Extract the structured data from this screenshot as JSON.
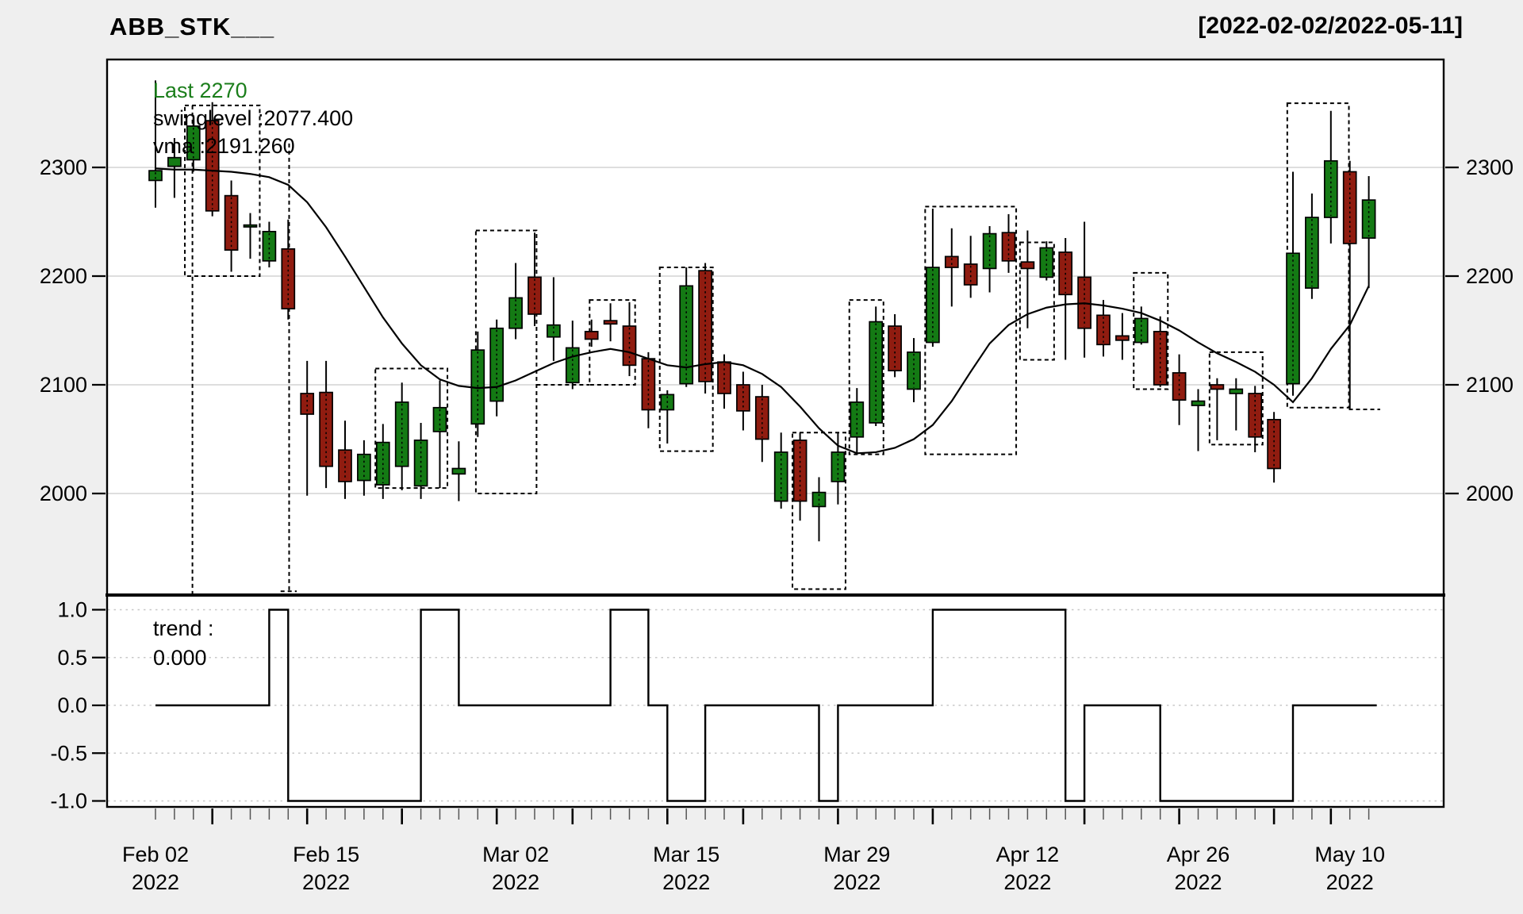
{
  "header": {
    "title": "ABB_STK___",
    "date_range": "[2022-02-02/2022-05-11]"
  },
  "main_panel": {
    "legend": {
      "last": "Last 2270",
      "swinglevel": "swinglevel :2077.400",
      "vma": "vma :2191.260"
    },
    "y_axis_ticks": [
      "2300",
      "2200",
      "2100",
      "2000"
    ]
  },
  "trend_panel": {
    "legend": {
      "line1": "trend :",
      "line2": "0.000"
    },
    "y_axis_ticks": [
      "1.0",
      "0.5",
      "0.0",
      "-0.5",
      "-1.0"
    ]
  },
  "colors": {
    "up": "#147a14",
    "down": "#901c10",
    "line": "#000000",
    "grid": "#d4d4d4",
    "trend_grid": "#c8c8c8",
    "panel_bg": "#ffffff",
    "page_bg": "#efefef",
    "text": "#000000",
    "last_green": "#1b7e1b"
  },
  "chart_data": {
    "type": "candlestick",
    "title": "ABB_STK___",
    "subtitle_range": "[2022-02-02/2022-05-11]",
    "ylabel": "",
    "xlabel": "",
    "ylim": [
      1905,
      2400
    ],
    "y_ticks": [
      2300,
      2200,
      2100,
      2000
    ],
    "trend_ylim": [
      -1.15,
      1.15
    ],
    "trend_ticks": [
      1.0,
      0.5,
      0.0,
      -0.5,
      -1.0
    ],
    "legend_values": {
      "last": 2270,
      "swinglevel": 2077.4,
      "vma": 2191.26,
      "trend": 0.0
    },
    "x_labels": [
      {
        "bar": 0,
        "line1": "Feb 02",
        "line2": "2022"
      },
      {
        "bar": 9,
        "line1": "Feb 15",
        "line2": "2022"
      },
      {
        "bar": 19,
        "line1": "Mar 02",
        "line2": "2022"
      },
      {
        "bar": 28,
        "line1": "Mar 15",
        "line2": "2022"
      },
      {
        "bar": 37,
        "line1": "Mar 29",
        "line2": "2022"
      },
      {
        "bar": 46,
        "line1": "Apr 12",
        "line2": "2022"
      },
      {
        "bar": 55,
        "line1": "Apr 26",
        "line2": "2022"
      },
      {
        "bar": 63,
        "line1": "May 10",
        "line2": "2022"
      }
    ],
    "week_start_bars": [
      3,
      8,
      13,
      18,
      22,
      27,
      31,
      36,
      41,
      49,
      54,
      59,
      62
    ],
    "series": {
      "dates": [
        "2022-02-02",
        "2022-02-03",
        "2022-02-04",
        "2022-02-07",
        "2022-02-08",
        "2022-02-09",
        "2022-02-10",
        "2022-02-11",
        "2022-02-14",
        "2022-02-15",
        "2022-02-16",
        "2022-02-17",
        "2022-02-18",
        "2022-02-21",
        "2022-02-22",
        "2022-02-23",
        "2022-02-24",
        "2022-02-25",
        "2022-02-28",
        "2022-03-02",
        "2022-03-03",
        "2022-03-04",
        "2022-03-07",
        "2022-03-08",
        "2022-03-09",
        "2022-03-10",
        "2022-03-11",
        "2022-03-14",
        "2022-03-15",
        "2022-03-16",
        "2022-03-17",
        "2022-03-21",
        "2022-03-22",
        "2022-03-23",
        "2022-03-24",
        "2022-03-25",
        "2022-03-28",
        "2022-03-29",
        "2022-03-30",
        "2022-03-31",
        "2022-04-01",
        "2022-04-04",
        "2022-04-05",
        "2022-04-06",
        "2022-04-07",
        "2022-04-08",
        "2022-04-12",
        "2022-04-13",
        "2022-04-14",
        "2022-04-18",
        "2022-04-19",
        "2022-04-20",
        "2022-04-21",
        "2022-04-22",
        "2022-04-25",
        "2022-04-26",
        "2022-04-27",
        "2022-04-28",
        "2022-04-29",
        "2022-05-02",
        "2022-05-05",
        "2022-05-06",
        "2022-05-09",
        "2022-05-10",
        "2022-05-11"
      ],
      "ohlc": [
        [
          2288,
          2380,
          2263,
          2297
        ],
        [
          2301,
          2327,
          2272,
          2309
        ],
        [
          2307,
          2346,
          2296,
          2338
        ],
        [
          2343,
          2360,
          2255,
          2260
        ],
        [
          2274,
          2288,
          2204,
          2224
        ],
        [
          2246,
          2258,
          2216,
          2247
        ],
        [
          2214,
          2250,
          2208,
          2241
        ],
        [
          2225,
          2252,
          2160,
          2170
        ],
        [
          2092,
          2122,
          1998,
          2073
        ],
        [
          2093,
          2122,
          2005,
          2025
        ],
        [
          2040,
          2067,
          1995,
          2011
        ],
        [
          2012,
          2049,
          1998,
          2036
        ],
        [
          2008,
          2064,
          1995,
          2047
        ],
        [
          2025,
          2102,
          2003,
          2084
        ],
        [
          2007,
          2065,
          1995,
          2049
        ],
        [
          2057,
          2104,
          2005,
          2079
        ],
        [
          2018,
          2048,
          1993,
          2023
        ],
        [
          2064,
          2149,
          2052,
          2132
        ],
        [
          2085,
          2160,
          2071,
          2152
        ],
        [
          2152,
          2212,
          2142,
          2180
        ],
        [
          2199,
          2240,
          2154,
          2165
        ],
        [
          2144,
          2199,
          2122,
          2155
        ],
        [
          2102,
          2159,
          2096,
          2134
        ],
        [
          2149,
          2160,
          2135,
          2142
        ],
        [
          2159,
          2175,
          2140,
          2156
        ],
        [
          2154,
          2176,
          2108,
          2118
        ],
        [
          2124,
          2130,
          2060,
          2077
        ],
        [
          2077,
          2095,
          2046,
          2091
        ],
        [
          2101,
          2208,
          2098,
          2191
        ],
        [
          2205,
          2212,
          2092,
          2103
        ],
        [
          2121,
          2128,
          2078,
          2092
        ],
        [
          2100,
          2112,
          2058,
          2076
        ],
        [
          2089,
          2100,
          2029,
          2050
        ],
        [
          1993,
          2056,
          1986,
          2038
        ],
        [
          2049,
          2056,
          1975,
          1993
        ],
        [
          1988,
          2015,
          1956,
          2001
        ],
        [
          2011,
          2056,
          1990,
          2038
        ],
        [
          2052,
          2097,
          2036,
          2084
        ],
        [
          2065,
          2172,
          2062,
          2158
        ],
        [
          2154,
          2165,
          2107,
          2113
        ],
        [
          2096,
          2143,
          2084,
          2130
        ],
        [
          2139,
          2262,
          2135,
          2208
        ],
        [
          2218,
          2244,
          2172,
          2208
        ],
        [
          2211,
          2237,
          2180,
          2192
        ],
        [
          2207,
          2246,
          2185,
          2239
        ],
        [
          2240,
          2257,
          2203,
          2214
        ],
        [
          2213,
          2242,
          2152,
          2207
        ],
        [
          2199,
          2232,
          2196,
          2226
        ],
        [
          2222,
          2235,
          2123,
          2183
        ],
        [
          2199,
          2250,
          2125,
          2152
        ],
        [
          2164,
          2178,
          2126,
          2137
        ],
        [
          2145,
          2166,
          2123,
          2141
        ],
        [
          2139,
          2172,
          2137,
          2161
        ],
        [
          2149,
          2163,
          2098,
          2100
        ],
        [
          2111,
          2128,
          2063,
          2086
        ],
        [
          2081,
          2096,
          2039,
          2085
        ],
        [
          2100,
          2106,
          2049,
          2096
        ],
        [
          2092,
          2106,
          2058,
          2096
        ],
        [
          2092,
          2099,
          2038,
          2052
        ],
        [
          2068,
          2075,
          2010,
          2023
        ],
        [
          2101,
          2296,
          2090,
          2221
        ],
        [
          2189,
          2276,
          2179,
          2254
        ],
        [
          2254,
          2352,
          2230,
          2306
        ],
        [
          2296,
          2306,
          2077,
          2230
        ],
        [
          2235,
          2292,
          2189,
          2270
        ]
      ],
      "vma": [
        2299,
        2298,
        2298,
        2297,
        2296,
        2294,
        2291,
        2284,
        2268,
        2245,
        2218,
        2190,
        2162,
        2138,
        2118,
        2105,
        2099,
        2097,
        2098,
        2104,
        2112,
        2120,
        2126,
        2130,
        2133,
        2130,
        2124,
        2118,
        2116,
        2119,
        2121,
        2118,
        2110,
        2098,
        2080,
        2060,
        2044,
        2037,
        2038,
        2042,
        2050,
        2063,
        2085,
        2112,
        2138,
        2155,
        2165,
        2171,
        2174,
        2175,
        2173,
        2170,
        2166,
        2159,
        2150,
        2139,
        2129,
        2121,
        2112,
        2100,
        2084,
        2106,
        2133,
        2155,
        2191
      ],
      "trend": [
        0,
        0,
        0,
        0,
        0,
        0,
        1,
        -1,
        -1,
        -1,
        -1,
        -1,
        -1,
        -1,
        1,
        1,
        0,
        0,
        0,
        0,
        0,
        0,
        0,
        0,
        1,
        1,
        0,
        -1,
        -1,
        0,
        0,
        0,
        0,
        0,
        0,
        -1,
        0,
        0,
        0,
        0,
        0,
        1,
        1,
        1,
        1,
        1,
        1,
        1,
        -1,
        0,
        0,
        0,
        0,
        -1,
        -1,
        -1,
        -1,
        -1,
        -1,
        -1,
        0,
        0,
        0,
        0,
        0
      ]
    },
    "overlays": {
      "swing_boxes": [
        [
          1.55,
          5.5,
          2200,
          2357
        ],
        [
          11.6,
          15.4,
          2005,
          2115
        ],
        [
          16.9,
          20.1,
          2000,
          2242
        ],
        [
          22.9,
          25.3,
          2100,
          2178
        ],
        [
          26.6,
          29.4,
          2039,
          2208
        ],
        [
          33.6,
          36.4,
          1912,
          2056
        ],
        [
          36.6,
          38.4,
          2036,
          2178
        ],
        [
          40.6,
          45.4,
          2036,
          2264
        ],
        [
          45.6,
          47.4,
          2123,
          2231
        ],
        [
          51.6,
          53.4,
          2096,
          2203
        ],
        [
          55.6,
          58.4,
          2045,
          2130
        ],
        [
          59.7,
          62.95,
          2079,
          2359
        ]
      ],
      "dashed_verticals": [
        [
          1.95,
          2357,
          1908
        ],
        [
          7.05,
          2322,
          1910
        ]
      ],
      "dashed_hsegments": [
        [
          20.1,
          22.9,
          2100
        ],
        [
          62.95,
          64.6,
          2077.4
        ],
        [
          6.6,
          7.45,
          1910
        ]
      ]
    }
  }
}
